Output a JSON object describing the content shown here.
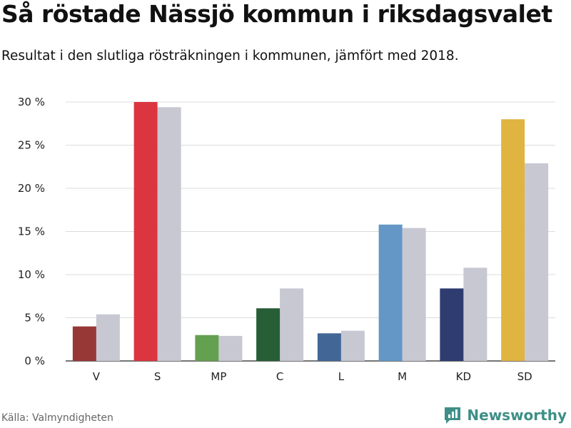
{
  "title": "Så röstade Nässjö kommun i riksdagsvalet",
  "subtitle": "Resultat i den slutliga rösträkningen i kommunen, jämfört med 2018.",
  "source": "Källa: Valmyndigheten",
  "brand": {
    "name": "Newsworthy",
    "icon": "newsworthy-logo-icon",
    "color": "#3e8f86"
  },
  "chart_data": {
    "type": "bar",
    "categories": [
      "V",
      "S",
      "MP",
      "C",
      "L",
      "M",
      "KD",
      "SD"
    ],
    "series": [
      {
        "values": [
          4.0,
          30.0,
          3.0,
          6.1,
          3.2,
          15.8,
          8.4,
          28.0
        ],
        "colors": [
          "#983836",
          "#db3640",
          "#63a04f",
          "#275e36",
          "#426796",
          "#6497c6",
          "#2f3c70",
          "#dfb440"
        ]
      },
      {
        "values": [
          5.4,
          29.4,
          2.9,
          8.4,
          3.5,
          15.4,
          10.8,
          22.9
        ],
        "color": "#c8c8d3"
      }
    ],
    "yticks": [
      "0 %",
      "5 %",
      "10 %",
      "15 %",
      "20 %",
      "25 %",
      "30 %"
    ],
    "ylim": [
      0,
      30
    ],
    "grid": true
  }
}
